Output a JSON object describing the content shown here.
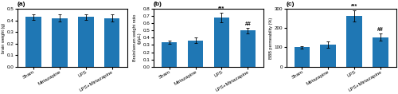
{
  "chart_data": [
    {
      "type": "bar",
      "title": "(a)",
      "ylabel": "brain weight (g)",
      "categories": [
        "Sham",
        "Mirtazapine",
        "LPS",
        "LPS+Mirtazapine"
      ],
      "values": [
        0.43,
        0.42,
        0.43,
        0.42
      ],
      "errors": [
        0.025,
        0.03,
        0.025,
        0.03
      ],
      "ylim": [
        0,
        0.5
      ],
      "yticks": [
        0.0,
        0.1,
        0.2,
        0.3,
        0.4,
        0.5
      ]
    },
    {
      "type": "bar",
      "title": "(b)",
      "ylabel": "Brain/serum weight ratio\n(g/μL)",
      "categories": [
        "Sham",
        "Mirtazapine",
        "LPS",
        "LPS+Mirtazapine"
      ],
      "values": [
        0.34,
        0.365,
        0.68,
        0.5
      ],
      "errors": [
        0.02,
        0.04,
        0.07,
        0.035
      ],
      "annotations": [
        {
          "text": "***",
          "category": "LPS"
        },
        {
          "text": "##",
          "category": "LPS+Mirtazapine"
        }
      ],
      "ylim": [
        0,
        0.8
      ],
      "yticks": [
        0.0,
        0.1,
        0.2,
        0.3,
        0.4,
        0.5,
        0.6,
        0.7,
        0.8
      ]
    },
    {
      "type": "bar",
      "title": "(c)",
      "ylabel": "BBB permeability (%)",
      "categories": [
        "Sham",
        "Mirtazapine",
        "LPS",
        "LPS+Mirtazapine"
      ],
      "values": [
        100,
        115,
        263,
        153
      ],
      "errors": [
        8,
        18,
        30,
        18
      ],
      "annotations": [
        {
          "text": "***",
          "category": "LPS"
        },
        {
          "text": "##",
          "category": "LPS+Mirtazapine"
        }
      ],
      "ylim": [
        0,
        300
      ],
      "yticks": [
        0,
        100,
        200,
        300
      ]
    }
  ]
}
